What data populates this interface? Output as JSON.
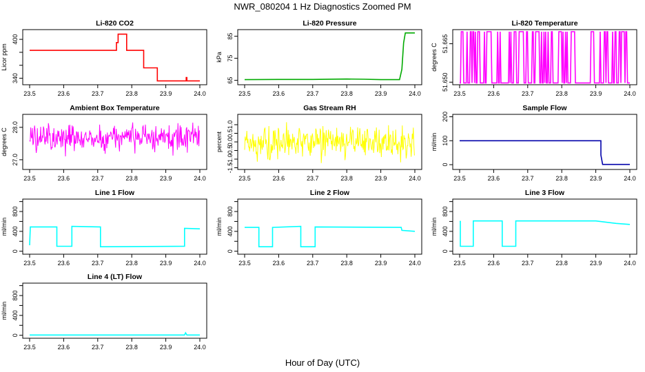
{
  "figure": {
    "title": "NWR_080204  1 Hz Diagnostics Zoomed PM",
    "xlabel": "Hour of Day (UTC)"
  },
  "chart_data": [
    {
      "type": "line",
      "title": "Li-820 CO2",
      "ylabel": "Licor ppm",
      "color": "#ff0000",
      "xlim": [
        23.5,
        24.0
      ],
      "ylim": [
        330,
        415
      ],
      "xticks": [
        "23.5",
        "23.6",
        "23.7",
        "23.8",
        "23.9",
        "24.0"
      ],
      "yticks": [
        340,
        360,
        380,
        400
      ],
      "ytick_labels": [
        "340",
        "",
        "",
        "400"
      ],
      "x": [
        23.5,
        23.755,
        23.755,
        23.76,
        23.76,
        23.785,
        23.785,
        23.835,
        23.835,
        23.875,
        23.875,
        23.96,
        23.96,
        23.962,
        23.962,
        24.0
      ],
      "y": [
        383,
        383,
        395,
        395,
        408,
        408,
        383,
        383,
        356,
        356,
        336,
        336,
        341,
        341,
        336,
        336
      ]
    },
    {
      "type": "line",
      "title": "Li-820 Pressure",
      "ylabel": "kPa",
      "color": "#00aa00",
      "xlim": [
        23.5,
        24.0
      ],
      "ylim": [
        63,
        88
      ],
      "xticks": [
        "23.5",
        "23.6",
        "23.7",
        "23.8",
        "23.9",
        "24.0"
      ],
      "yticks": [
        65,
        75,
        85
      ],
      "ytick_labels": [
        "65",
        "75",
        "85"
      ],
      "x": [
        23.5,
        23.6,
        23.7,
        23.8,
        23.85,
        23.9,
        23.955,
        23.962,
        23.967,
        23.972,
        24.0
      ],
      "y": [
        65.3,
        65.4,
        65.4,
        65.6,
        65.5,
        65.3,
        65.3,
        70,
        82,
        86.5,
        86.5
      ]
    },
    {
      "type": "line",
      "title": "Li-820 Temperature",
      "ylabel": "degrees C",
      "color": "#ff00ff",
      "xlim": [
        23.5,
        24.0
      ],
      "ylim": [
        51.649,
        51.6705
      ],
      "xticks": [
        "23.5",
        "23.6",
        "23.7",
        "23.8",
        "23.9",
        "24.0"
      ],
      "yticks": [
        51.65,
        51.665
      ],
      "ytick_labels": [
        "51.650",
        "51.665"
      ],
      "y_low": 51.6497,
      "y_high": 51.6697,
      "pattern": "rapid alternation between two quantized levels across the whole window"
    },
    {
      "type": "line",
      "title": "Ambient Box Temperature",
      "ylabel": "degrees C",
      "color": "#ff00ff",
      "xlim": [
        23.5,
        24.0
      ],
      "ylim": [
        26.7,
        28.4
      ],
      "xticks": [
        "23.5",
        "23.6",
        "23.7",
        "23.8",
        "23.9",
        "24.0"
      ],
      "yticks": [
        27.0,
        28.0
      ],
      "ytick_labels": [
        "27.0",
        "28.0"
      ],
      "mean": 27.55,
      "noise_range": [
        27.0,
        28.3
      ]
    },
    {
      "type": "line",
      "title": "Gas Stream RH",
      "ylabel": "percent",
      "color": "#ffff00",
      "xlim": [
        23.5,
        24.0
      ],
      "ylim": [
        -1.6,
        1.6
      ],
      "xticks": [
        "23.5",
        "23.6",
        "23.7",
        "23.8",
        "23.9",
        "24.0"
      ],
      "yticks": [
        -1.5,
        -1.0,
        -0.5,
        0.0,
        0.5,
        1.0
      ],
      "ytick_labels": [
        "-1.5",
        "-1.0",
        "-0.5",
        "0.0",
        "0.5",
        "1.0"
      ],
      "mean": 0.0,
      "noise_range": [
        -1.5,
        1.4
      ]
    },
    {
      "type": "line",
      "title": "Sample Flow",
      "ylabel": "ml/min",
      "color": "#0000aa",
      "xlim": [
        23.5,
        24.0
      ],
      "ylim": [
        -20,
        210
      ],
      "xticks": [
        "23.5",
        "23.6",
        "23.7",
        "23.8",
        "23.9",
        "24.0"
      ],
      "yticks": [
        0,
        100,
        200
      ],
      "ytick_labels": [
        "0",
        "100",
        "200"
      ],
      "x": [
        23.5,
        23.8,
        23.915,
        23.915,
        23.92,
        24.0
      ],
      "y": [
        100,
        100,
        100,
        40,
        1,
        1
      ]
    },
    {
      "type": "line",
      "title": "Line 1 Flow",
      "ylabel": "ml/min",
      "color": "#00ffff",
      "xlim": [
        23.5,
        24.0
      ],
      "ylim": [
        -60,
        1050
      ],
      "xticks": [
        "23.5",
        "23.6",
        "23.7",
        "23.8",
        "23.9",
        "24.0"
      ],
      "yticks": [
        0,
        200,
        400,
        600,
        800,
        1000
      ],
      "ytick_labels": [
        "0",
        "",
        "400",
        "",
        "800",
        ""
      ],
      "x": [
        23.5,
        23.502,
        23.58,
        23.58,
        23.624,
        23.624,
        23.708,
        23.708,
        23.955,
        23.955,
        24.0
      ],
      "y": [
        120,
        490,
        490,
        100,
        100,
        500,
        490,
        90,
        100,
        460,
        450
      ]
    },
    {
      "type": "line",
      "title": "Line 2 Flow",
      "ylabel": "ml/min",
      "color": "#00ffff",
      "xlim": [
        23.5,
        24.0
      ],
      "ylim": [
        -60,
        1050
      ],
      "xticks": [
        "23.5",
        "23.6",
        "23.7",
        "23.8",
        "23.9",
        "24.0"
      ],
      "yticks": [
        0,
        200,
        400,
        600,
        800,
        1000
      ],
      "ytick_labels": [
        "0",
        "",
        "400",
        "",
        "800",
        ""
      ],
      "x": [
        23.5,
        23.542,
        23.542,
        23.582,
        23.582,
        23.665,
        23.665,
        23.707,
        23.707,
        23.96,
        23.962,
        24.0
      ],
      "y": [
        480,
        480,
        90,
        90,
        480,
        500,
        90,
        90,
        490,
        480,
        420,
        400
      ]
    },
    {
      "type": "line",
      "title": "Line 3 Flow",
      "ylabel": "ml/min",
      "color": "#00ffff",
      "xlim": [
        23.5,
        24.0
      ],
      "ylim": [
        -60,
        1050
      ],
      "xticks": [
        "23.5",
        "23.6",
        "23.7",
        "23.8",
        "23.9",
        "24.0"
      ],
      "yticks": [
        0,
        200,
        400,
        600,
        800,
        1000
      ],
      "ytick_labels": [
        "0",
        "",
        "400",
        "",
        "800",
        ""
      ],
      "x": [
        23.5,
        23.502,
        23.502,
        23.54,
        23.54,
        23.625,
        23.625,
        23.665,
        23.665,
        23.9,
        23.96,
        24.0
      ],
      "y": [
        600,
        600,
        100,
        100,
        610,
        610,
        100,
        100,
        610,
        610,
        560,
        540
      ]
    },
    {
      "type": "line",
      "title": "Line 4 (LT) Flow",
      "ylabel": "ml/min",
      "color": "#00ffff",
      "xlim": [
        23.5,
        24.0
      ],
      "ylim": [
        -60,
        1050
      ],
      "xticks": [
        "23.5",
        "23.6",
        "23.7",
        "23.8",
        "23.9",
        "24.0"
      ],
      "yticks": [
        0,
        200,
        400,
        600,
        800,
        1000
      ],
      "ytick_labels": [
        "0",
        "",
        "400",
        "",
        "800",
        ""
      ],
      "x": [
        23.5,
        23.955,
        23.958,
        23.962,
        24.0
      ],
      "y": [
        5,
        5,
        50,
        5,
        5
      ]
    }
  ]
}
